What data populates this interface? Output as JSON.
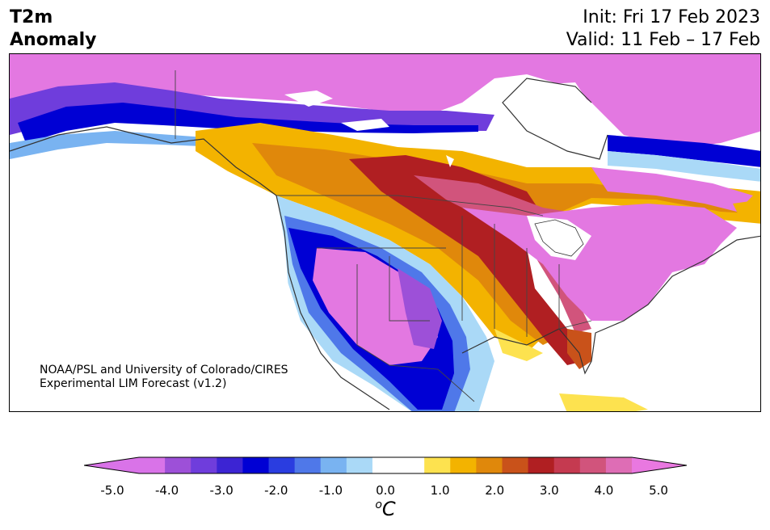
{
  "title": {
    "line1": "T2m",
    "line2": "Anomaly"
  },
  "dates": {
    "init": "Init: Fri 17 Feb 2023",
    "valid": "Valid: 11 Feb – 17 Feb"
  },
  "credit": {
    "line1": "NOAA/PSL and University of Colorado/CIRES",
    "line2": "Experimental LIM Forecast (v1.2)"
  },
  "colorbar": {
    "unit_base": "o",
    "unit_letter": "C",
    "ticks": [
      "-5.0",
      "-4.0",
      "-3.0",
      "-2.0",
      "-1.0",
      "0.0",
      "1.0",
      "2.0",
      "3.0",
      "4.0",
      "5.0"
    ],
    "colors": [
      "#d973e8",
      "#9d50d8",
      "#6f3ddc",
      "#3c24d3",
      "#0000d4",
      "#2a3de0",
      "#4f78e9",
      "#79b3f1",
      "#aad9f7",
      "#ffffff",
      "#ffffff",
      "#fde24f",
      "#f3b300",
      "#e0880b",
      "#c9521a",
      "#b01f22",
      "#c53a50",
      "#d1547c",
      "#de6db5"
    ],
    "low_extend_color": "#d973e8",
    "high_extend_color": "#e978e0"
  },
  "map": {
    "land_color": "#ffffff",
    "anomaly_warm_color": "#e378e1",
    "anomaly_cold_color": "#0000d4"
  }
}
